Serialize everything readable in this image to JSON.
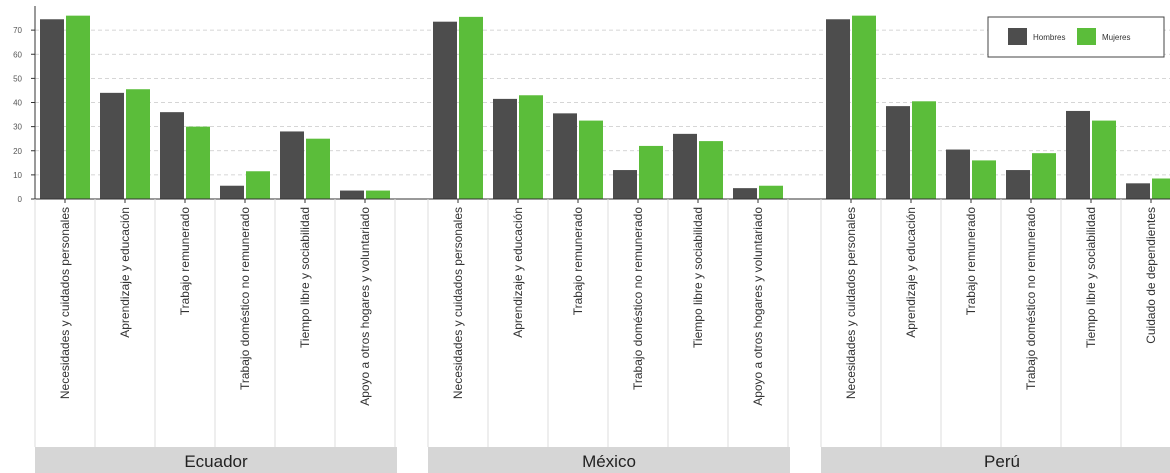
{
  "chart_data": {
    "type": "bar",
    "title": "",
    "xlabel": "",
    "ylabel": "",
    "ylim": [
      0,
      80
    ],
    "yticks": [
      0,
      10,
      20,
      30,
      40,
      50,
      60,
      70
    ],
    "grid": true,
    "legend_position": "top-right",
    "series_names": [
      "Hombres",
      "Mujeres"
    ],
    "colors": {
      "Hombres": "#4d4d4d",
      "Mujeres": "#5bbd3a",
      "strip": "#d6d6d6"
    },
    "panels": [
      {
        "name": "Ecuador",
        "categories": [
          "Necesidades y cuidados personales",
          "Aprendizaje y educación",
          "Trabajo remunerado",
          "Trabajo doméstico no remunerado",
          "Tiempo libre y sociabilidad",
          "Apoyo a otros hogares y voluntariado"
        ],
        "series": [
          {
            "name": "Hombres",
            "values": [
              74.5,
              44,
              36,
              5.5,
              28,
              3.5
            ]
          },
          {
            "name": "Mujeres",
            "values": [
              76,
              45.5,
              30,
              11.5,
              25,
              3.5
            ]
          }
        ]
      },
      {
        "name": "México",
        "categories": [
          "Necesidades y cuidados personales",
          "Aprendizaje y educación",
          "Trabajo remunerado",
          "Trabajo doméstico no remunerado",
          "Tiempo libre y sociabilidad",
          "Apoyo a otros hogares y voluntariado"
        ],
        "series": [
          {
            "name": "Hombres",
            "values": [
              73.5,
              41.5,
              35.5,
              12,
              27,
              4.5
            ]
          },
          {
            "name": "Mujeres",
            "values": [
              75.5,
              43,
              32.5,
              22,
              24,
              5.5
            ]
          }
        ]
      },
      {
        "name": "Perú",
        "categories": [
          "Necesidades y cuidados personales",
          "Aprendizaje y educación",
          "Trabajo remunerado",
          "Trabajo doméstico no remunerado",
          "Tiempo libre y sociabilidad",
          "Cuidado de dependientes"
        ],
        "series": [
          {
            "name": "Hombres",
            "values": [
              74.5,
              38.5,
              20.5,
              12,
              36.5,
              6.5
            ]
          },
          {
            "name": "Mujeres",
            "values": [
              76,
              40.5,
              16,
              19,
              32.5,
              8.5
            ]
          }
        ]
      }
    ]
  }
}
